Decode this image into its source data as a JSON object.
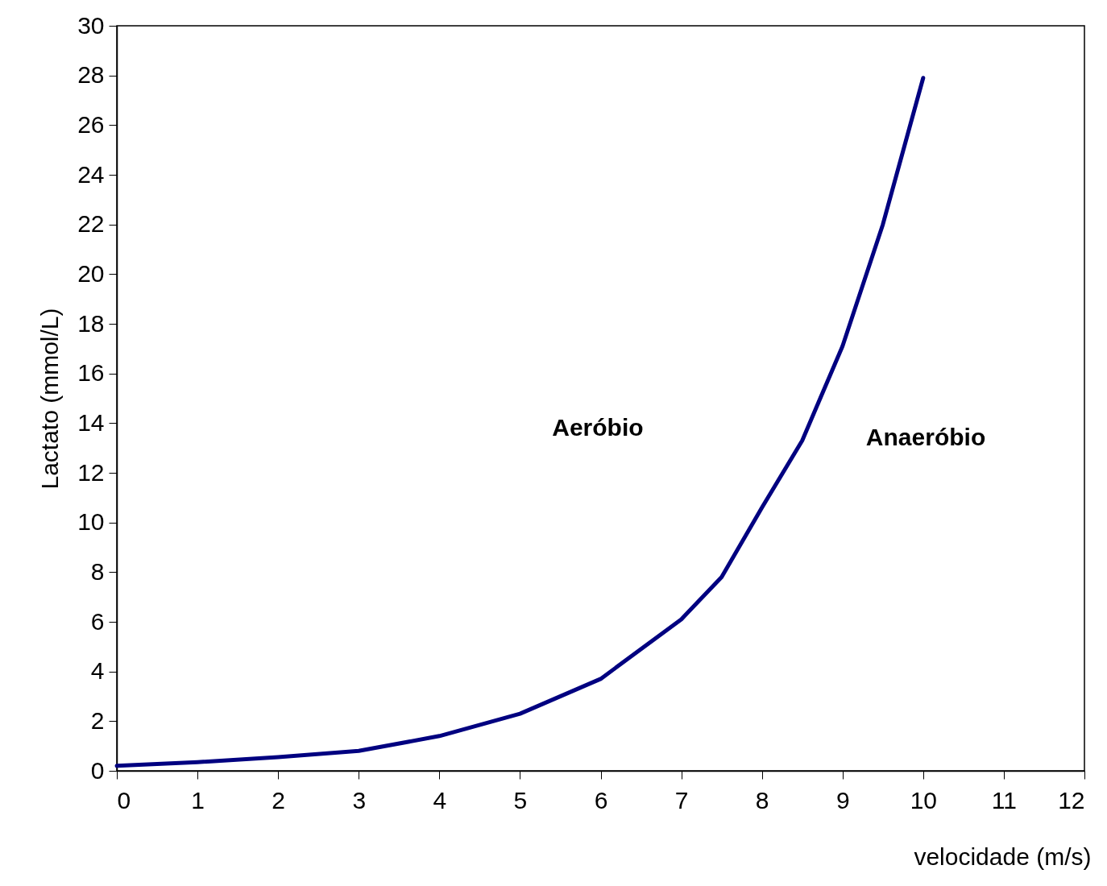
{
  "chart_data": {
    "type": "line",
    "xlabel": "velocidade (m/s)",
    "ylabel": "Lactato (mmol/L)",
    "annotations": [
      "Aeróbio",
      "Anaeróbio"
    ],
    "x": [
      0,
      1,
      2,
      3,
      4,
      5,
      6,
      7,
      7.5,
      8,
      8.5,
      9,
      9.5,
      10
    ],
    "series": [
      {
        "color": "#000080",
        "values": [
          0.2,
          0.35,
          0.55,
          0.8,
          1.4,
          2.3,
          3.7,
          6.1,
          7.8,
          10.6,
          13.3,
          17.1,
          22,
          27.9
        ]
      }
    ],
    "xlim": [
      0,
      12
    ],
    "xticks": [
      0,
      1,
      2,
      3,
      4,
      5,
      6,
      7,
      8,
      9,
      10,
      11,
      12
    ],
    "ylim": [
      0,
      30
    ],
    "yticks": [
      0,
      2,
      4,
      6,
      8,
      10,
      12,
      14,
      16,
      18,
      20,
      22,
      24,
      26,
      28,
      30
    ],
    "grid": false,
    "legend": false,
    "marker": "none",
    "line_style": "solid"
  }
}
